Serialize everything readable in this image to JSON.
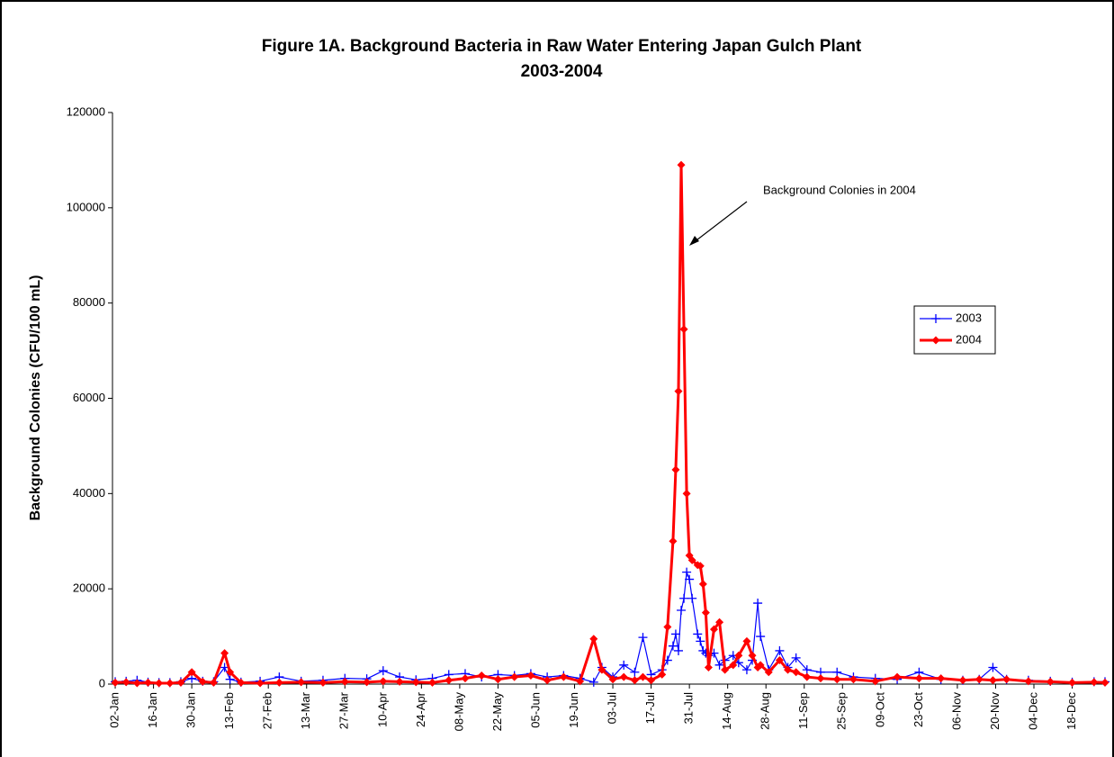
{
  "chart_data": {
    "type": "line",
    "title": "Figure 1A.  Background Bacteria in Raw Water Entering Japan Gulch Plant",
    "subtitle": "2003-2004",
    "y_label": "Background Colonies (CFU/100 mL)",
    "annotation": "Background Colonies in 2004",
    "x": [
      2,
      6,
      10,
      14,
      18,
      22,
      26,
      30,
      34,
      38,
      42,
      44,
      48,
      55,
      62,
      70,
      78,
      86,
      94,
      100,
      106,
      112,
      118,
      124,
      130,
      136,
      142,
      148,
      154,
      160,
      166,
      172,
      177,
      180,
      184,
      188,
      192,
      195,
      198,
      202,
      204,
      206,
      207,
      208,
      209,
      210,
      211,
      212,
      213,
      215,
      216,
      217,
      218,
      219,
      221,
      223,
      225,
      228,
      230,
      233,
      235,
      237,
      238,
      241,
      245,
      248,
      251,
      255,
      260,
      266,
      272,
      280,
      288,
      296,
      304,
      312,
      318,
      323,
      328,
      336,
      344,
      352,
      360,
      364
    ],
    "series": [
      {
        "name": "2003",
        "color": "#0000ff",
        "marker": "plus",
        "values": [
          500,
          600,
          800,
          400,
          300,
          300,
          500,
          1200,
          600,
          500,
          3500,
          1000,
          400,
          600,
          1500,
          600,
          800,
          1200,
          1100,
          2800,
          1500,
          900,
          1200,
          2000,
          2200,
          1500,
          2000,
          1800,
          2200,
          1500,
          1800,
          1200,
          400,
          3500,
          1500,
          4000,
          2500,
          9800,
          2000,
          3000,
          5000,
          8000,
          10500,
          7000,
          15500,
          18000,
          23500,
          22000,
          18000,
          10500,
          9000,
          7000,
          6500,
          6000,
          6500,
          4000,
          5000,
          6000,
          4500,
          3000,
          5000,
          17000,
          10000,
          3000,
          7000,
          3500,
          5500,
          3000,
          2500,
          2500,
          1500,
          1200,
          1000,
          2500,
          1000,
          800,
          1000,
          3500,
          1000,
          800,
          600,
          400,
          500,
          500
        ]
      },
      {
        "name": "2004",
        "color": "#ff0000",
        "marker": "diamond",
        "values": [
          300,
          400,
          200,
          300,
          200,
          200,
          300,
          2500,
          500,
          300,
          6500,
          2500,
          300,
          200,
          300,
          400,
          300,
          500,
          400,
          600,
          500,
          400,
          300,
          800,
          1200,
          1800,
          1000,
          1500,
          1800,
          800,
          1500,
          600,
          9500,
          3000,
          1000,
          1500,
          800,
          1500,
          800,
          2000,
          12000,
          30000,
          45000,
          61500,
          109000,
          74500,
          40000,
          27000,
          26000,
          25000,
          24800,
          21000,
          15000,
          3500,
          11500,
          13000,
          3000,
          4000,
          6000,
          9000,
          6000,
          3500,
          4000,
          2500,
          5000,
          3000,
          2500,
          1500,
          1200,
          1000,
          1000,
          600,
          1500,
          1200,
          1200,
          800,
          1000,
          800,
          1000,
          600,
          500,
          300,
          400,
          300
        ]
      }
    ],
    "xlim": [
      1,
      364
    ],
    "xticks": [
      {
        "value": 2,
        "label": "02-Jan"
      },
      {
        "value": 16,
        "label": "16-Jan"
      },
      {
        "value": 30,
        "label": "30-Jan"
      },
      {
        "value": 44,
        "label": "13-Feb"
      },
      {
        "value": 58,
        "label": "27-Feb"
      },
      {
        "value": 72,
        "label": "13-Mar"
      },
      {
        "value": 86,
        "label": "27-Mar"
      },
      {
        "value": 100,
        "label": "10-Apr"
      },
      {
        "value": 114,
        "label": "24-Apr"
      },
      {
        "value": 128,
        "label": "08-May"
      },
      {
        "value": 142,
        "label": "22-May"
      },
      {
        "value": 156,
        "label": "05-Jun"
      },
      {
        "value": 170,
        "label": "19-Jun"
      },
      {
        "value": 184,
        "label": "03-Jul"
      },
      {
        "value": 198,
        "label": "17-Jul"
      },
      {
        "value": 212,
        "label": "31-Jul"
      },
      {
        "value": 226,
        "label": "14-Aug"
      },
      {
        "value": 240,
        "label": "28-Aug"
      },
      {
        "value": 254,
        "label": "11-Sep"
      },
      {
        "value": 268,
        "label": "25-Sep"
      },
      {
        "value": 282,
        "label": "09-Oct"
      },
      {
        "value": 296,
        "label": "23-Oct"
      },
      {
        "value": 310,
        "label": "06-Nov"
      },
      {
        "value": 324,
        "label": "20-Nov"
      },
      {
        "value": 338,
        "label": "04-Dec"
      },
      {
        "value": 352,
        "label": "18-Dec"
      }
    ],
    "ylim": [
      0,
      120000
    ],
    "yticks": [
      0,
      20000,
      40000,
      60000,
      80000,
      100000,
      120000
    ],
    "grid": false,
    "legend": "right"
  }
}
